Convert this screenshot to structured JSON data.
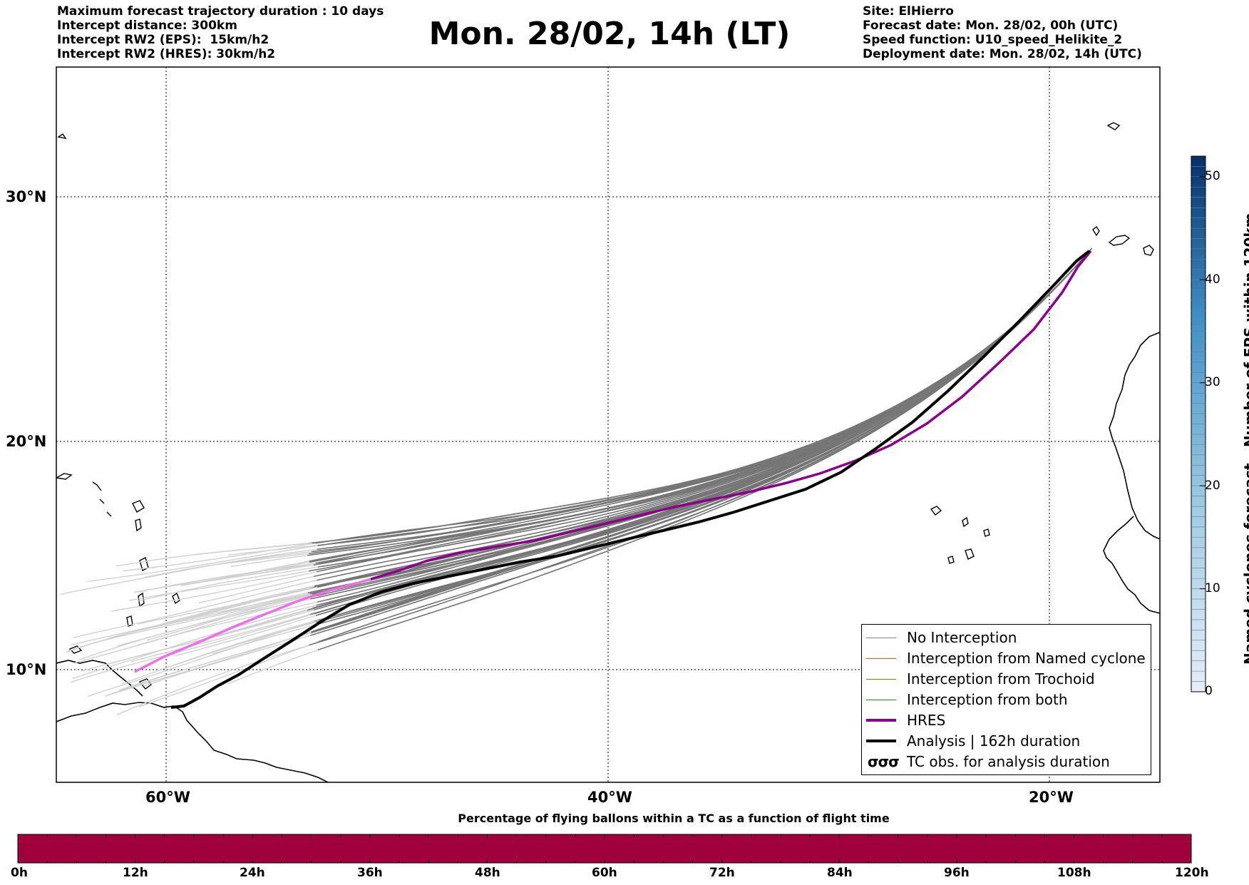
{
  "header": {
    "left_lines": [
      "Maximum forecast trajectory duration : 10 days",
      "Intercept distance: 300km",
      "Intercept RW2 (EPS):  15km/h2",
      "Intercept RW2 (HRES): 30km/h2"
    ],
    "title": "Mon. 28/02, 14h (LT)",
    "right_lines": [
      "Site: ElHierro",
      "Forecast date: Mon. 28/02, 00h (UTC)",
      "Speed function: U10_speed_Helikite_2",
      "Deployment date: Mon. 28/02, 14h (UTC)"
    ]
  },
  "map": {
    "lat_labels": [
      "30°N",
      "20°N",
      "10°N"
    ],
    "lon_labels": [
      "60°W",
      "40°W",
      "20°W"
    ]
  },
  "legend": {
    "items": [
      {
        "label": "No Interception",
        "color": "#808080"
      },
      {
        "label": "Interception from Named cyclone",
        "color": "#e8590c"
      },
      {
        "label": "Interception from Trochoid",
        "color": "#808000"
      },
      {
        "label": "Interception from both",
        "color": "#228b22"
      },
      {
        "label": "HRES",
        "color": "#8b008b"
      },
      {
        "label": "Analysis | 162h duration",
        "color": "#000000"
      },
      {
        "label": "TC obs. for analysis duration",
        "icon": "cyclone-symbols-icon",
        "symbol": "σσσ"
      }
    ]
  },
  "colorbar": {
    "title": "Named cyclones forecast - Number of EPS within 120km",
    "ticks": [
      "0",
      "10",
      "20",
      "30",
      "40",
      "50"
    ],
    "max": 52,
    "color_low": "#e6eef8",
    "color_high": "#08306b"
  },
  "percentage_bar": {
    "title": "Percentage of flying ballons within a TC as a function of flight time",
    "ticks": [
      "0h",
      "12h",
      "24h",
      "36h",
      "48h",
      "60h",
      "72h",
      "84h",
      "96h",
      "108h",
      "120h"
    ],
    "fill_color": "#a0003c"
  }
}
